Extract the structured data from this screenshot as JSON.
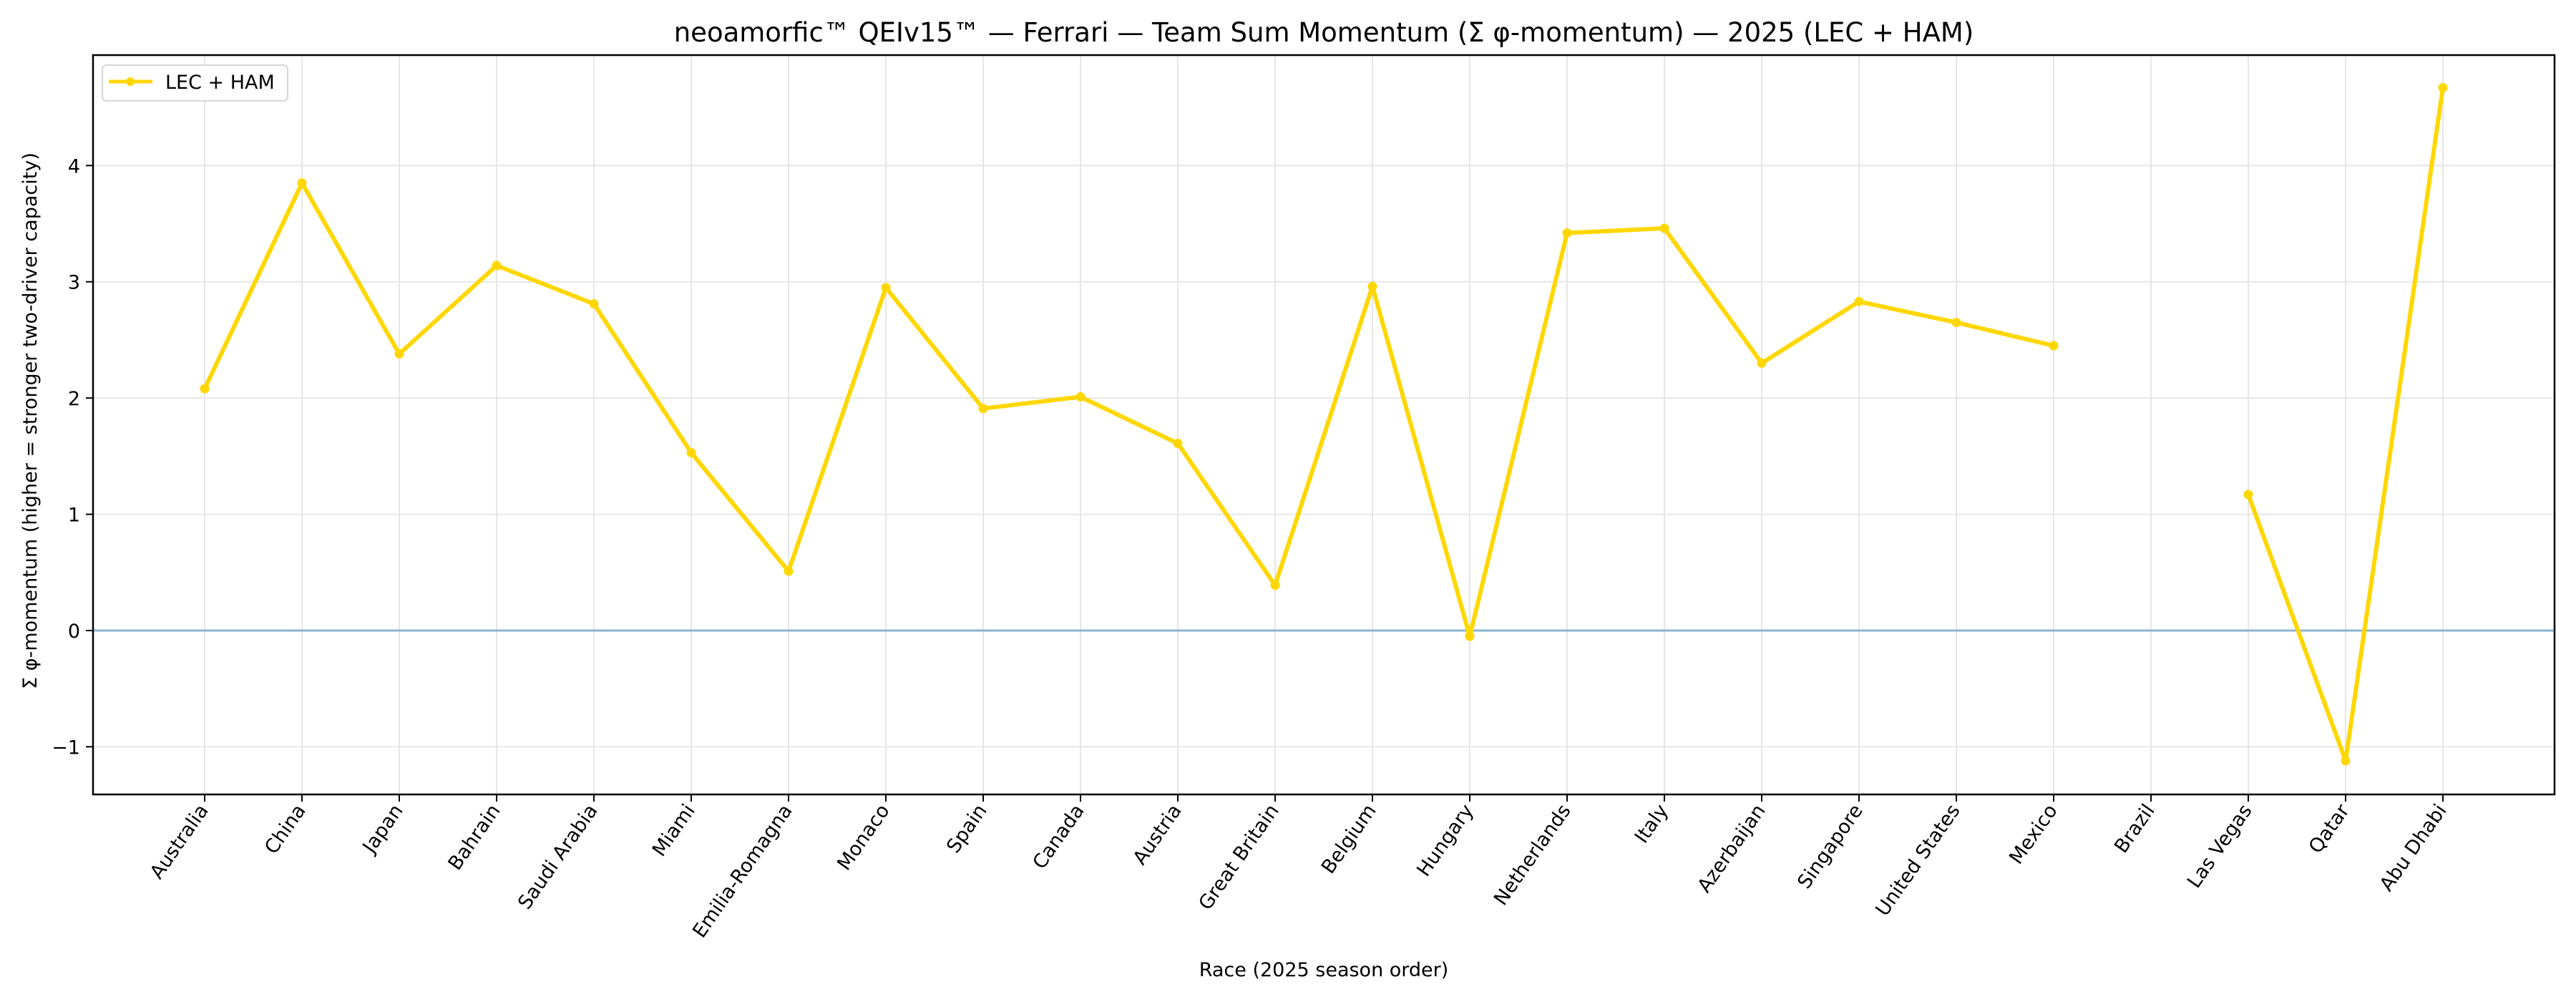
{
  "chart_data": {
    "type": "line",
    "title": "neoamorfic™  QEIv15™ — Ferrari — Team Sum Momentum (Σ φ-momentum) — 2025 (LEC + HAM)",
    "xlabel": "Race (2025 season order)",
    "ylabel": "Σ φ-momentum (higher = stronger two-driver capacity)",
    "categories": [
      "Australia",
      "China",
      "Japan",
      "Bahrain",
      "Saudi Arabia",
      "Miami",
      "Emilia-Romagna",
      "Monaco",
      "Spain",
      "Canada",
      "Austria",
      "Great Britain",
      "Belgium",
      "Hungary",
      "Netherlands",
      "Italy",
      "Azerbaijan",
      "Singapore",
      "United States",
      "Mexico",
      "Brazil",
      "Las Vegas",
      "Qatar",
      "Abu Dhabi"
    ],
    "series": [
      {
        "name": "LEC + HAM",
        "color": "#FFD700",
        "values": [
          2.08,
          3.85,
          2.38,
          3.14,
          2.81,
          1.53,
          0.51,
          2.95,
          1.91,
          2.01,
          1.61,
          0.39,
          2.96,
          -0.05,
          3.42,
          3.46,
          2.3,
          2.83,
          2.65,
          2.45,
          null,
          1.17,
          -1.12,
          4.67
        ]
      }
    ],
    "yticks": [
      -1,
      0,
      1,
      2,
      3,
      4
    ],
    "ytick_labels": [
      "−1",
      "0",
      "1",
      "2",
      "3",
      "4"
    ],
    "ylim": [
      -1.41,
      4.95
    ],
    "reference_line": {
      "y": 0,
      "color": "#8AB4D4"
    },
    "grid": true,
    "legend_position": "upper left"
  }
}
